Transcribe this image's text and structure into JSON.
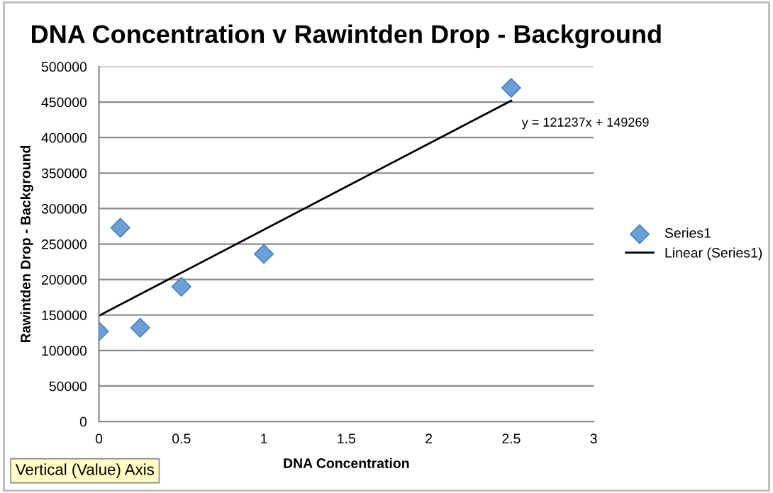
{
  "chart_data": {
    "type": "scatter",
    "title": "DNA Concentration v Rawintden Drop - Background",
    "xlabel": "DNA Concentration",
    "ylabel": "Rawintden Drop - Background",
    "series": [
      {
        "name": "Series1",
        "color": "#6a9fd8",
        "x": [
          0,
          0.13,
          0.25,
          0.5,
          1,
          2.5
        ],
        "values": [
          127000,
          273000,
          132000,
          190000,
          236000,
          470000
        ],
        "marker": "diamond"
      },
      {
        "name": "Linear (Series1)",
        "type": "line",
        "color": "#000000",
        "x": [
          0,
          2.5
        ],
        "values": [
          149000,
          452000
        ],
        "marker": "none"
      }
    ],
    "xlim": [
      0,
      3
    ],
    "xticks": [
      0,
      0.5,
      1,
      1.5,
      2,
      2.5,
      3
    ],
    "ylim": [
      0,
      500000
    ],
    "yticks": [
      0,
      50000,
      100000,
      150000,
      200000,
      250000,
      300000,
      350000,
      400000,
      450000,
      500000
    ],
    "grid": "y",
    "legend": "right",
    "annotations": [
      "y = 121237x + 149269",
      "Vertical (Value) Axis"
    ]
  }
}
